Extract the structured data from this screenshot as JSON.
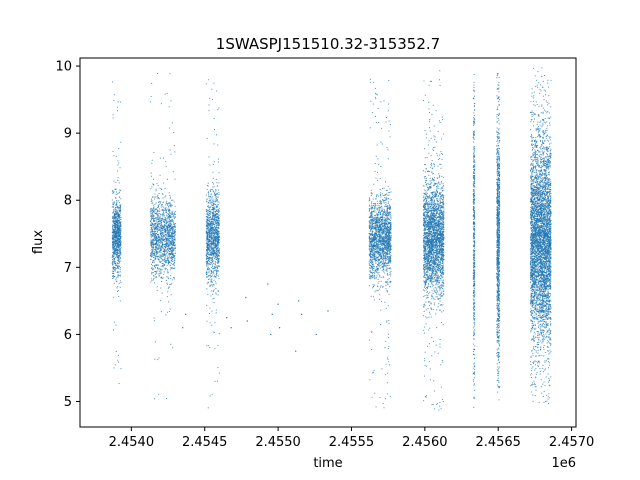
{
  "chart_data": {
    "type": "scatter",
    "title": "1SWASPJ151510.32-315352.7",
    "xlabel": "time",
    "ylabel": "flux",
    "x_offset_label": "1e6",
    "xlim": [
      2.45365,
      2.45703
    ],
    "ylim": [
      4.62,
      10.12
    ],
    "x_ticks": [
      2.454,
      2.4545,
      2.455,
      2.4555,
      2.456,
      2.4565,
      2.457
    ],
    "x_tick_labels": [
      "2.4540",
      "2.4545",
      "2.4550",
      "2.4555",
      "2.4560",
      "2.4565",
      "2.4570"
    ],
    "y_ticks": [
      5,
      6,
      7,
      8,
      9,
      10
    ],
    "y_tick_labels": [
      "5",
      "6",
      "7",
      "8",
      "9",
      "10"
    ],
    "grid": false,
    "marker_color": "#1f77b4",
    "clusters": [
      {
        "x": [
          2.45387,
          2.45393
        ],
        "center": 7.45,
        "spread": 0.28,
        "ymin": 5.2,
        "ymax": 9.9,
        "n": 900
      },
      {
        "x": [
          2.45413,
          2.4543
        ],
        "center": 7.45,
        "spread": 0.3,
        "ymin": 4.95,
        "ymax": 9.95,
        "n": 1400
      },
      {
        "x": [
          2.45451,
          2.4546
        ],
        "center": 7.45,
        "spread": 0.33,
        "ymin": 4.9,
        "ymax": 9.9,
        "n": 1200
      },
      {
        "x": [
          2.45562,
          2.45577
        ],
        "center": 7.45,
        "spread": 0.3,
        "ymin": 4.9,
        "ymax": 9.85,
        "n": 1800
      },
      {
        "x": [
          2.45599,
          2.45613
        ],
        "center": 7.45,
        "spread": 0.42,
        "ymin": 4.85,
        "ymax": 9.95,
        "n": 2600
      },
      {
        "x": [
          2.45633,
          2.45634
        ],
        "center": 7.45,
        "spread": 1.1,
        "ymin": 4.9,
        "ymax": 9.98,
        "n": 500
      },
      {
        "x": [
          2.45649,
          2.45651
        ],
        "center": 7.45,
        "spread": 0.9,
        "ymin": 4.85,
        "ymax": 9.9,
        "n": 1000
      },
      {
        "x": [
          2.45672,
          2.45686
        ],
        "center": 7.4,
        "spread": 0.75,
        "ymin": 4.9,
        "ymax": 9.98,
        "n": 4500
      }
    ],
    "sparse_points": [
      {
        "x": 2.45465,
        "y": 6.25
      },
      {
        "x": 2.45468,
        "y": 6.1
      },
      {
        "x": 2.45478,
        "y": 6.55
      },
      {
        "x": 2.45479,
        "y": 6.2
      },
      {
        "x": 2.45493,
        "y": 6.75
      },
      {
        "x": 2.45495,
        "y": 6.0
      },
      {
        "x": 2.45496,
        "y": 6.3
      },
      {
        "x": 2.455,
        "y": 6.45
      },
      {
        "x": 2.45501,
        "y": 6.1
      },
      {
        "x": 2.45512,
        "y": 5.75
      },
      {
        "x": 2.45514,
        "y": 6.5
      },
      {
        "x": 2.45516,
        "y": 6.3
      },
      {
        "x": 2.45526,
        "y": 6.0
      },
      {
        "x": 2.45534,
        "y": 6.35
      },
      {
        "x": 2.45435,
        "y": 6.1
      },
      {
        "x": 2.45437,
        "y": 6.3
      }
    ]
  }
}
